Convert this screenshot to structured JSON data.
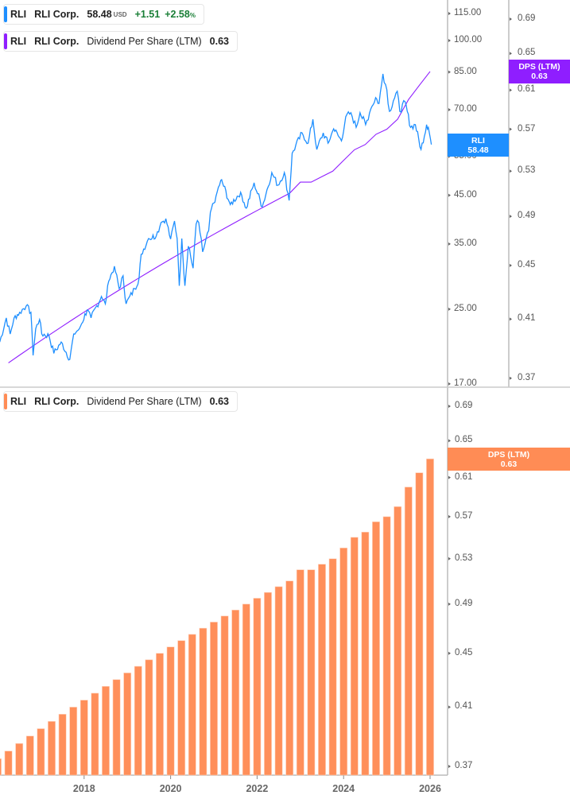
{
  "legend_price": {
    "ticker": "RLI",
    "name": "RLI Corp.",
    "price": "58.48",
    "currency": "USD",
    "change": "+1.51",
    "change_pct": "+2.58",
    "pct_sign": "%",
    "color": "#1e8fff"
  },
  "legend_dps_top": {
    "ticker": "RLI",
    "name": "RLI Corp.",
    "metric": "Dividend Per Share (LTM)",
    "value": "0.63",
    "color": "#8f1eff"
  },
  "legend_dps_bottom": {
    "ticker": "RLI",
    "name": "RLI Corp.",
    "metric": "Dividend Per Share (LTM)",
    "value": "0.63",
    "color": "#ff8c55"
  },
  "tags": {
    "price_label": "RLI",
    "price_value": "58.48",
    "dps_label": "DPS (LTM)",
    "dps_value": "0.63",
    "bottom_label": "DPS (LTM)",
    "bottom_value": "0.63"
  },
  "chart_data": [
    {
      "type": "line",
      "scale": "log",
      "ylabel": "",
      "yticks": [
        "115.00",
        "100.00",
        "85.00",
        "70.00",
        "55.00",
        "45.00",
        "35.00",
        "25.00",
        "17.00"
      ],
      "series": [
        {
          "name": "RLI",
          "color": "#1e8fff",
          "points": [
            [
              2016.05,
              21.1
            ],
            [
              2016.2,
              23.9
            ],
            [
              2016.29,
              22.0
            ],
            [
              2016.38,
              23.9
            ],
            [
              2016.51,
              24.6
            ],
            [
              2016.66,
              25.4
            ],
            [
              2016.77,
              24.6
            ],
            [
              2016.82,
              19.7
            ],
            [
              2016.88,
              22.6
            ],
            [
              2016.97,
              23.7
            ],
            [
              2017.02,
              22.0
            ],
            [
              2017.19,
              21.8
            ],
            [
              2017.3,
              19.9
            ],
            [
              2017.47,
              21.1
            ],
            [
              2017.67,
              19.3
            ],
            [
              2017.76,
              22.0
            ],
            [
              2017.89,
              22.6
            ],
            [
              2018.07,
              24.9
            ],
            [
              2018.16,
              23.9
            ],
            [
              2018.4,
              26.7
            ],
            [
              2018.49,
              25.7
            ],
            [
              2018.57,
              28.9
            ],
            [
              2018.7,
              31.2
            ],
            [
              2018.81,
              27.8
            ],
            [
              2018.9,
              29.7
            ],
            [
              2018.97,
              25.7
            ],
            [
              2019.17,
              27.8
            ],
            [
              2019.27,
              29.3
            ],
            [
              2019.32,
              33.2
            ],
            [
              2019.49,
              36.0
            ],
            [
              2019.67,
              36.5
            ],
            [
              2019.78,
              39.1
            ],
            [
              2019.89,
              39.9
            ],
            [
              2020.0,
              35.9
            ],
            [
              2020.09,
              39.4
            ],
            [
              2020.15,
              36.0
            ],
            [
              2020.2,
              28.2
            ],
            [
              2020.26,
              36.0
            ],
            [
              2020.33,
              28.2
            ],
            [
              2020.41,
              34.6
            ],
            [
              2020.52,
              30.9
            ],
            [
              2020.59,
              38.8
            ],
            [
              2020.65,
              39.1
            ],
            [
              2020.74,
              33.6
            ],
            [
              2020.88,
              37.5
            ],
            [
              2020.92,
              41.2
            ],
            [
              2021.05,
              44.8
            ],
            [
              2021.16,
              48.6
            ],
            [
              2021.2,
              48.0
            ],
            [
              2021.38,
              42.9
            ],
            [
              2021.62,
              45.7
            ],
            [
              2021.75,
              42.1
            ],
            [
              2021.93,
              48.0
            ],
            [
              2022.12,
              42.4
            ],
            [
              2022.34,
              50.6
            ],
            [
              2022.48,
              47.4
            ],
            [
              2022.63,
              50.6
            ],
            [
              2022.74,
              43.8
            ],
            [
              2022.81,
              55.9
            ],
            [
              2023.04,
              62.1
            ],
            [
              2023.18,
              58.9
            ],
            [
              2023.29,
              66.6
            ],
            [
              2023.38,
              57.0
            ],
            [
              2023.53,
              62.1
            ],
            [
              2023.64,
              58.9
            ],
            [
              2023.77,
              63.4
            ],
            [
              2023.95,
              59.6
            ],
            [
              2024.05,
              67.5
            ],
            [
              2024.17,
              68.9
            ],
            [
              2024.29,
              63.9
            ],
            [
              2024.38,
              68.9
            ],
            [
              2024.51,
              64.8
            ],
            [
              2024.63,
              70.3
            ],
            [
              2024.74,
              74.5
            ],
            [
              2024.82,
              72.3
            ],
            [
              2024.91,
              84.2
            ],
            [
              2025.0,
              77.6
            ],
            [
              2025.06,
              69.4
            ],
            [
              2025.15,
              73.3
            ],
            [
              2025.24,
              77.0
            ],
            [
              2025.3,
              69.4
            ],
            [
              2025.42,
              73.0
            ],
            [
              2025.55,
              63.9
            ],
            [
              2025.66,
              64.8
            ],
            [
              2025.79,
              57.0
            ],
            [
              2025.92,
              64.8
            ],
            [
              2025.96,
              63.9
            ],
            [
              2026.03,
              58.48
            ]
          ]
        },
        {
          "name": "DPS (LTM)",
          "color": "#8f1eff",
          "axis": "right"
        }
      ],
      "y2ticks": [
        "0.69",
        "0.65",
        "0.61",
        "0.57",
        "0.53",
        "0.49",
        "0.45",
        "0.41",
        "0.37"
      ]
    },
    {
      "type": "bar",
      "scale": "log",
      "yticks": [
        "0.69",
        "0.65",
        "0.61",
        "0.57",
        "0.53",
        "0.49",
        "0.45",
        "0.41",
        "0.37"
      ],
      "xticks": [
        "2018",
        "2020",
        "2022",
        "2024",
        "2026"
      ],
      "start": 2016.0,
      "step": 0.25,
      "color": "#ff8f5a",
      "values": [
        0.375,
        0.38,
        0.385,
        0.39,
        0.395,
        0.4,
        0.405,
        0.41,
        0.415,
        0.42,
        0.425,
        0.43,
        0.435,
        0.44,
        0.445,
        0.45,
        0.455,
        0.46,
        0.465,
        0.47,
        0.475,
        0.48,
        0.485,
        0.49,
        0.495,
        0.5,
        0.505,
        0.51,
        0.52,
        0.52,
        0.525,
        0.53,
        0.54,
        0.55,
        0.555,
        0.565,
        0.57,
        0.58,
        0.6,
        0.615,
        0.63
      ]
    }
  ]
}
